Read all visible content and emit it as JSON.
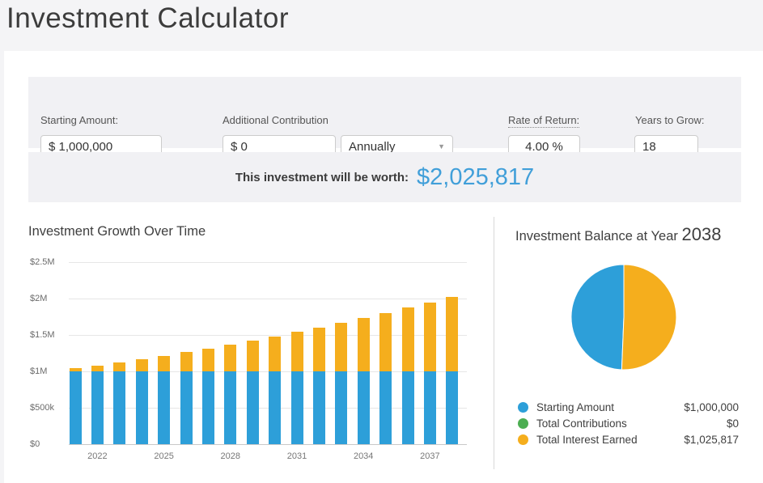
{
  "page": {
    "title": "Investment Calculator"
  },
  "form": {
    "starting_amount": {
      "label": "Starting Amount:",
      "value": "$ 1,000,000"
    },
    "additional_contribution": {
      "label": "Additional Contribution",
      "value": "$ 0",
      "frequency": "Annually"
    },
    "rate_of_return": {
      "label": "Rate of Return:",
      "value": "4.00 %"
    },
    "years_to_grow": {
      "label": "Years to Grow:",
      "value": "18"
    }
  },
  "result": {
    "label": "This investment will be worth:",
    "value": "$2,025,817"
  },
  "colors": {
    "bar_blue": "#2d9fd9",
    "interest_yellow": "#f5ae1d",
    "contributions_green": "#4cae52",
    "result_blue": "#419fd9"
  },
  "chart_data": [
    {
      "type": "bar",
      "title": "Investment Growth Over Time",
      "stacked": true,
      "x": [
        2021,
        2022,
        2023,
        2024,
        2025,
        2026,
        2027,
        2028,
        2029,
        2030,
        2031,
        2032,
        2033,
        2034,
        2035,
        2036,
        2037,
        2038
      ],
      "series": [
        {
          "name": "Starting Amount",
          "color": "#2d9fd9",
          "values": [
            1000000,
            1000000,
            1000000,
            1000000,
            1000000,
            1000000,
            1000000,
            1000000,
            1000000,
            1000000,
            1000000,
            1000000,
            1000000,
            1000000,
            1000000,
            1000000,
            1000000,
            1000000
          ]
        },
        {
          "name": "Interest Earned",
          "color": "#f5ae1d",
          "values": [
            40000,
            81600,
            124864,
            169859,
            216653,
            265319,
            315932,
            368569,
            423312,
            480244,
            539454,
            601032,
            665074,
            731676,
            800944,
            872981,
            947900,
            1025817
          ]
        }
      ],
      "ylim": [
        0,
        2500000
      ],
      "yticks": [
        {
          "value": 0,
          "label": "$0"
        },
        {
          "value": 500000,
          "label": "$500k"
        },
        {
          "value": 1000000,
          "label": "$1M"
        },
        {
          "value": 1500000,
          "label": "$1.5M"
        },
        {
          "value": 2000000,
          "label": "$2M"
        },
        {
          "value": 2500000,
          "label": "$2.5M"
        }
      ],
      "xtick_labels": [
        "2022",
        "2025",
        "2028",
        "2031",
        "2034",
        "2037"
      ],
      "grid": true,
      "legend_position": "none"
    },
    {
      "type": "pie",
      "title": "Investment Balance at Year",
      "year": "2038",
      "slices": [
        {
          "label": "Starting Amount",
          "value": 1000000,
          "display": "$1,000,000",
          "color": "#2d9fd9"
        },
        {
          "label": "Total Contributions",
          "value": 0,
          "display": "$0",
          "color": "#4cae52"
        },
        {
          "label": "Total Interest Earned",
          "value": 1025817,
          "display": "$1,025,817",
          "color": "#f5ae1d"
        }
      ],
      "start_angle": "top",
      "direction": "counter-clockwise",
      "legend_position": "bottom"
    }
  ]
}
